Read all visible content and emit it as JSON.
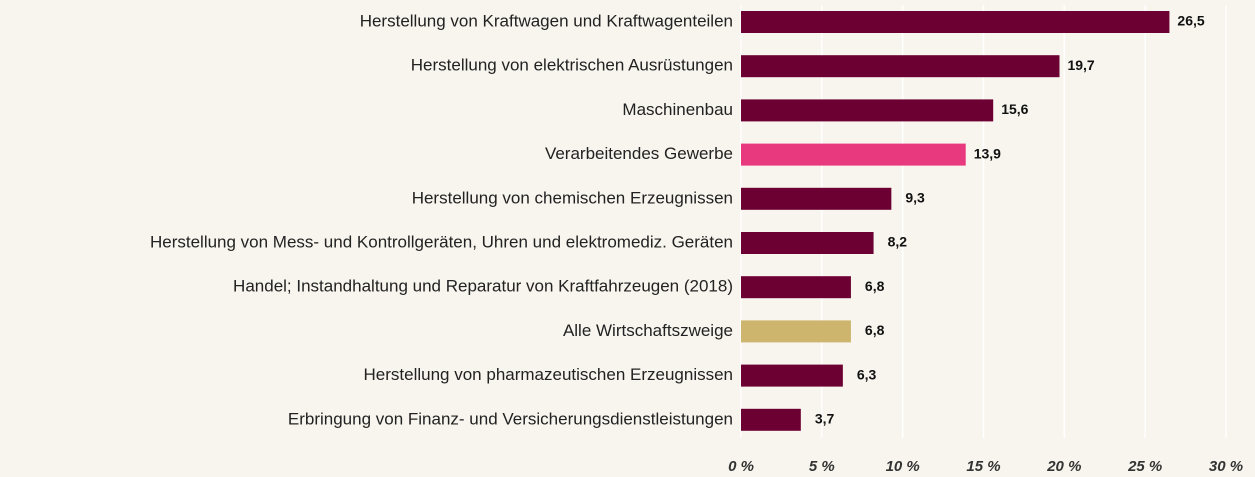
{
  "chart_data": {
    "type": "hbar",
    "categories": [
      "Herstellung von Kraftwagen und Kraftwagenteilen",
      "Herstellung von elektrischen Ausrüstungen",
      "Maschinenbau",
      "Verarbeitendes Gewerbe",
      "Herstellung von chemischen Erzeugnissen",
      "Herstellung von Mess- und Kontrollgeräten, Uhren und elektromediz. Geräten",
      "Handel; Instandhaltung und Reparatur von Kraftfahrzeugen (2018)",
      "Alle Wirtschaftszweige",
      "Herstellung von pharmazeutischen Erzeugnissen",
      "Erbringung von Finanz- und Versicherungsdienstleistungen"
    ],
    "values": [
      26.5,
      19.7,
      15.6,
      13.9,
      9.3,
      8.2,
      6.8,
      6.8,
      6.3,
      3.7
    ],
    "value_labels": [
      "26,5",
      "19,7",
      "15,6",
      "13,9",
      "9,3",
      "8,2",
      "6,8",
      "6,8",
      "6,3",
      "3,7"
    ],
    "colors": [
      "#6d0032",
      "#6d0032",
      "#6d0032",
      "#e8387e",
      "#6d0032",
      "#6d0032",
      "#6d0032",
      "#cdb56e",
      "#6d0032",
      "#6d0032"
    ],
    "xlim": [
      0,
      30
    ],
    "xticks": [
      {
        "value": 0,
        "label": "0 %"
      },
      {
        "value": 5,
        "label": "5 %"
      },
      {
        "value": 10,
        "label": "10 %"
      },
      {
        "value": 15,
        "label": "15 %"
      },
      {
        "value": 20,
        "label": "20 %"
      },
      {
        "value": 25,
        "label": "25 %"
      },
      {
        "value": 30,
        "label": "30 %"
      }
    ],
    "grid": true
  }
}
